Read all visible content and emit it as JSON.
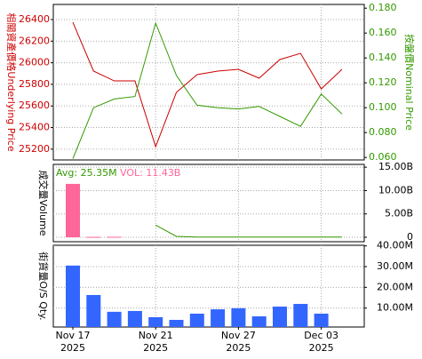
{
  "chart_data": [
    {
      "type": "line",
      "ylabel": "相關資產價格Underlying Price",
      "y2label": "按盤價Nominal Price",
      "ylim": [
        25100,
        26540
      ],
      "yticks": [
        25200,
        25400,
        25600,
        25800,
        26000,
        26200,
        26400
      ],
      "y2lim": [
        0.058,
        0.183
      ],
      "y2ticks": [
        {
          "value": 0.06,
          "label": "0.060"
        },
        {
          "value": 0.08,
          "label": "0.080"
        },
        {
          "value": 0.1,
          "label": "0.100"
        },
        {
          "value": 0.12,
          "label": "0.120"
        },
        {
          "value": 0.14,
          "label": "0.140"
        },
        {
          "value": 0.16,
          "label": "0.160"
        },
        {
          "value": 0.18,
          "label": "0.180"
        }
      ],
      "grid": true,
      "series": [
        {
          "color": "#cc0000",
          "values": [
            26375,
            25923,
            25832,
            25832,
            25223,
            25725,
            25890,
            25923,
            25939,
            25857,
            26030,
            26087,
            25758,
            25939
          ]
        },
        {
          "color": "#339900",
          "axis": "y2",
          "values": [
            0.059,
            0.1,
            0.107,
            0.109,
            0.168,
            0.126,
            0.102,
            0.1,
            0.099,
            0.101,
            0.093,
            0.085,
            0.111,
            0.095
          ]
        }
      ]
    },
    {
      "type": "bar",
      "ylabel": "成交量Volume",
      "avg_label": "Avg: 25.35M",
      "vol_label": "VOL: 11.43B",
      "ylim": [
        -950000000,
        15600000000
      ],
      "yticks": [
        0,
        {
          "value": 5000000000,
          "label": "5.00B"
        },
        {
          "value": 10000000000,
          "label": "10.00B"
        },
        {
          "value": 15000000000,
          "label": "15.00B"
        }
      ],
      "grid": true,
      "series": [
        {
          "color": "#ff6699",
          "values": [
            11430000000,
            80000000,
            100000000,
            null,
            null,
            null,
            null,
            null,
            null,
            null,
            null,
            null,
            null,
            null
          ]
        },
        {
          "type": "line",
          "color": "#339900",
          "values": [
            null,
            null,
            null,
            null,
            2600000000,
            200000000,
            50000000,
            50000000,
            50000000,
            50000000,
            50000000,
            50000000,
            50000000,
            50000000
          ]
        }
      ]
    },
    {
      "type": "bar",
      "ylabel": "街貨量O/S Qty.",
      "ylim": [
        860000,
        40300000
      ],
      "yticks": [
        {
          "value": 10000000,
          "label": "10.00M"
        },
        {
          "value": 20000000,
          "label": "20.00M"
        },
        {
          "value": 30000000,
          "label": "30.00M"
        },
        {
          "value": 40000000,
          "label": "40.00M"
        }
      ],
      "grid": true,
      "categories": [
        "Nov 17",
        null,
        null,
        null,
        "Nov 21",
        null,
        null,
        null,
        "Nov 27",
        null,
        null,
        null,
        "Dec 03",
        null
      ],
      "category_years": [
        "2025",
        null,
        null,
        null,
        "2025",
        null,
        null,
        null,
        "2025",
        null,
        null,
        null,
        "2025",
        null
      ],
      "series": [
        {
          "color": "#3366ff",
          "values": [
            30500000,
            16300000,
            8200000,
            8600000,
            5600000,
            4300000,
            7300000,
            9400000,
            9900000,
            6000000,
            10700000,
            12000000,
            7300000,
            null
          ]
        }
      ]
    }
  ]
}
